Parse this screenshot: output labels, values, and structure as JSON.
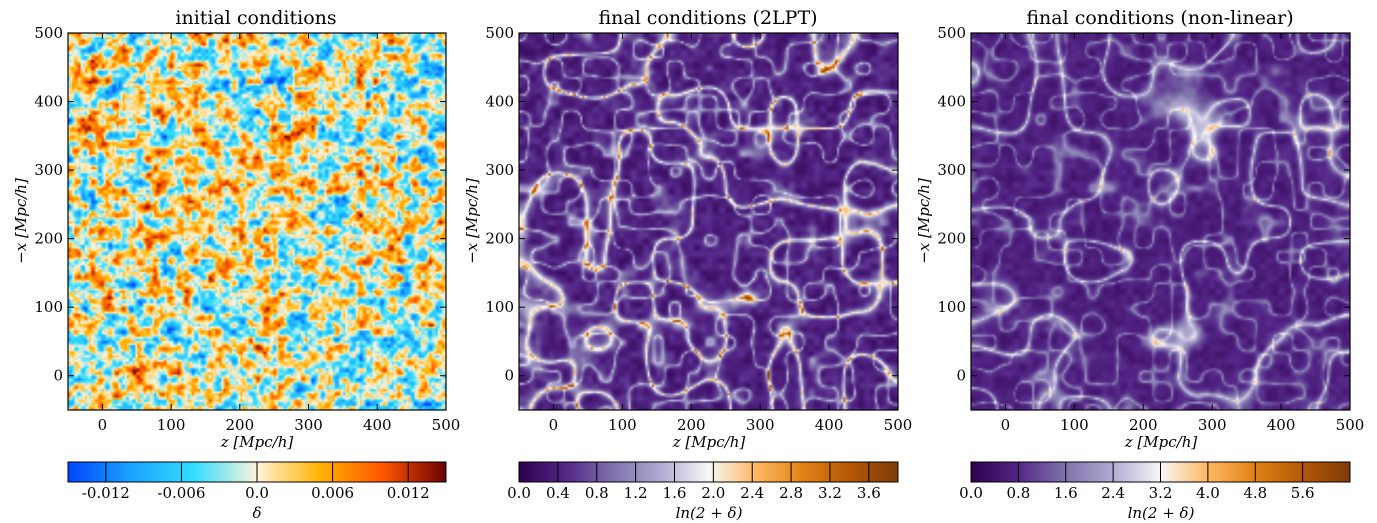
{
  "chart_data": [
    {
      "type": "heatmap",
      "title": "initial conditions",
      "xlabel": "z [Mpc/h]",
      "ylabel": "−x [Mpc/h]",
      "xlim": [
        -50,
        500
      ],
      "ylim": [
        -50,
        500
      ],
      "xticks": [
        "0",
        "100",
        "200",
        "300",
        "400",
        "500"
      ],
      "yticks": [
        "0",
        "100",
        "200",
        "300",
        "400",
        "500"
      ],
      "colorbar": {
        "label": "δ",
        "range": [
          -0.015,
          0.015
        ],
        "ticks": [
          -0.012,
          -0.006,
          0.0,
          0.006,
          0.012
        ],
        "tick_labels": [
          "-0.012",
          "-0.006",
          "0.0",
          "0.006",
          "0.012"
        ],
        "colors": [
          "#0044ff",
          "#1aa3ff",
          "#33ddff",
          "#fff3d9",
          "#ffb300",
          "#ff5500",
          "#6b0000"
        ]
      },
      "field": "gaussian"
    },
    {
      "type": "heatmap",
      "title": "final conditions (2LPT)",
      "xlabel": "z [Mpc/h]",
      "ylabel": "−x [Mpc/h]",
      "xlim": [
        -50,
        500
      ],
      "ylim": [
        -50,
        500
      ],
      "xticks": [
        "0",
        "100",
        "200",
        "300",
        "400",
        "500"
      ],
      "yticks": [
        "0",
        "100",
        "200",
        "300",
        "400",
        "500"
      ],
      "colorbar": {
        "label": "ln(2 + δ)",
        "range": [
          0.0,
          3.9
        ],
        "ticks": [
          0.0,
          0.4,
          0.8,
          1.2,
          1.6,
          2.0,
          2.4,
          2.8,
          3.2,
          3.6
        ],
        "tick_labels": [
          "0.0",
          "0.4",
          "0.8",
          "1.2",
          "1.6",
          "2.0",
          "2.4",
          "2.8",
          "3.2",
          "3.6"
        ],
        "colors": [
          "#2d004b",
          "#542788",
          "#8073ac",
          "#b2abd2",
          "#f7f7f7",
          "#fdb863",
          "#e08214",
          "#b35806",
          "#7f3b08"
        ]
      },
      "field": "cosmic-web"
    },
    {
      "type": "heatmap",
      "title": "final conditions (non-linear)",
      "xlabel": "z [Mpc/h]",
      "ylabel": "−x [Mpc/h]",
      "xlim": [
        -50,
        500
      ],
      "ylim": [
        -50,
        500
      ],
      "xticks": [
        "0",
        "100",
        "200",
        "300",
        "400",
        "500"
      ],
      "yticks": [
        "0",
        "100",
        "200",
        "300",
        "400",
        "500"
      ],
      "colorbar": {
        "label": "ln(2 + δ)",
        "range": [
          0.0,
          6.4
        ],
        "ticks": [
          0.0,
          0.8,
          1.6,
          2.4,
          3.2,
          4.0,
          4.8,
          5.6
        ],
        "tick_labels": [
          "0.0",
          "0.8",
          "1.6",
          "2.4",
          "3.2",
          "4.0",
          "4.8",
          "5.6"
        ],
        "colors": [
          "#2d004b",
          "#542788",
          "#8073ac",
          "#b2abd2",
          "#f7f7f7",
          "#fdb863",
          "#e08214",
          "#b35806",
          "#7f3b08"
        ]
      },
      "field": "cosmic-web"
    }
  ]
}
